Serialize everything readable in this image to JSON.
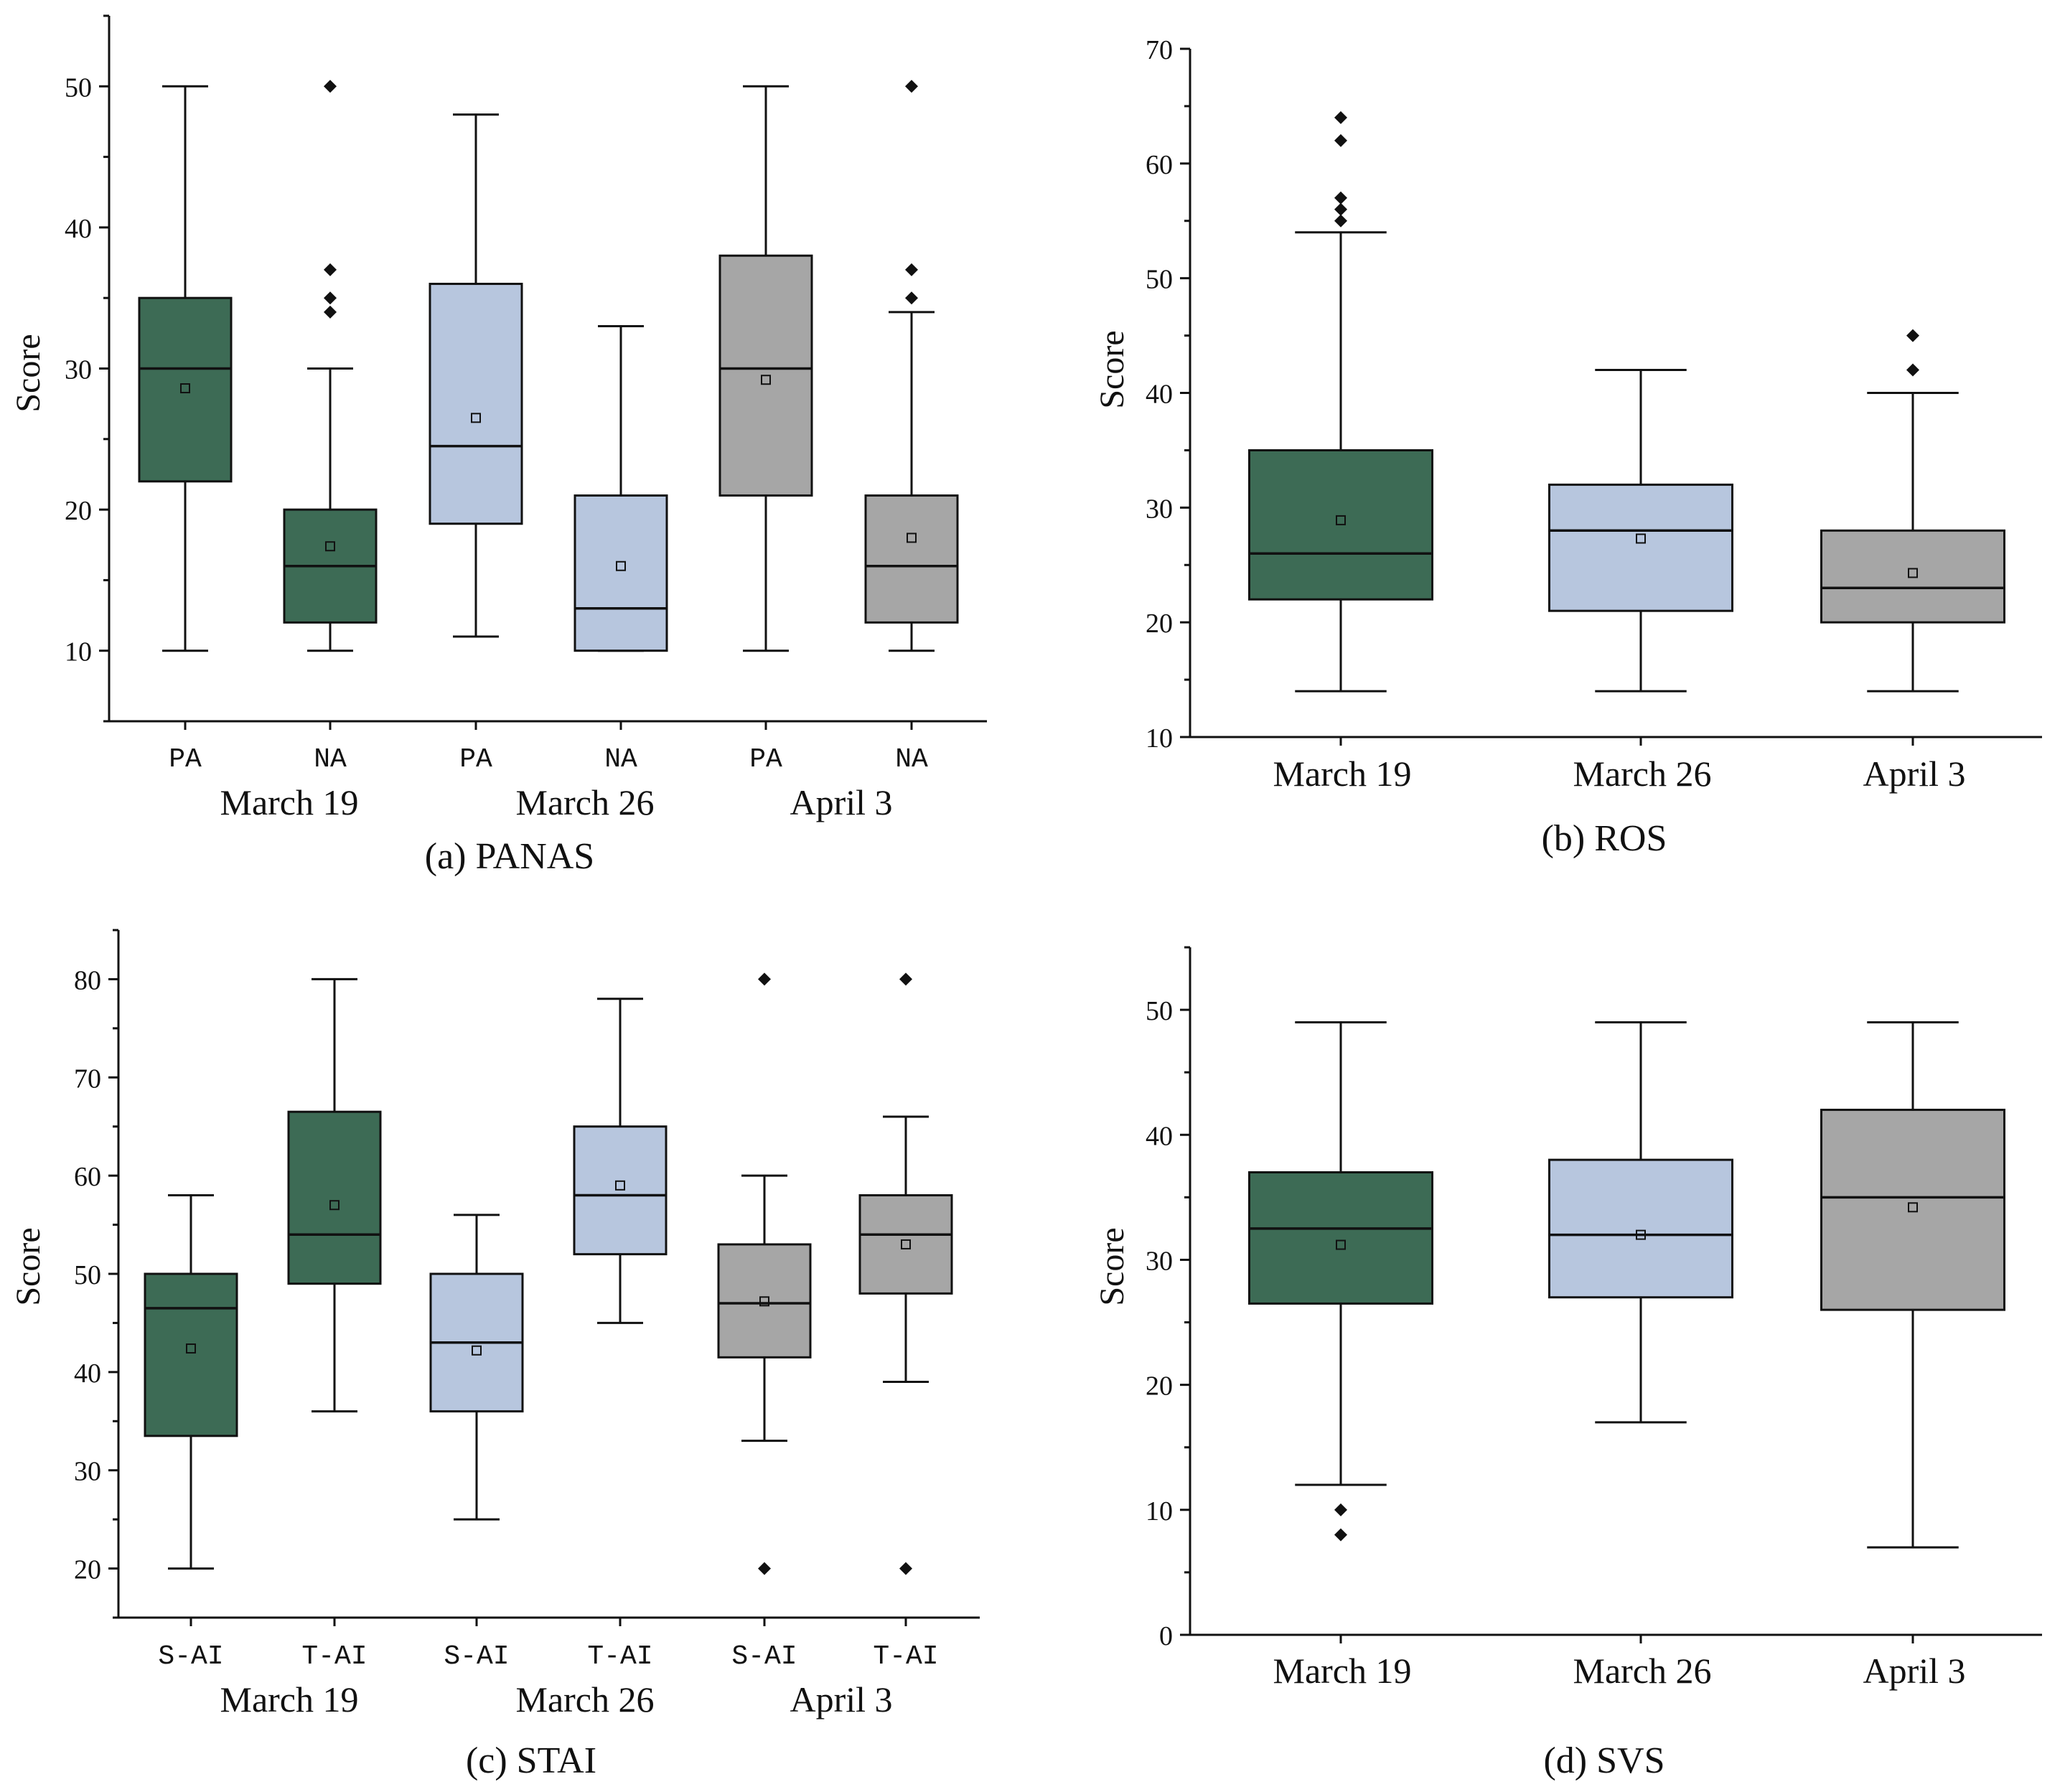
{
  "colors": {
    "march19": "#3d6b55",
    "march26": "#b7c6de",
    "april3": "#a6a6a6",
    "line": "#111111",
    "background": "#ffffff"
  },
  "chart_data": [
    {
      "id": "panas",
      "type": "box",
      "title": "(a) PANAS",
      "ylabel": "Score",
      "ylim": [
        5,
        55
      ],
      "yticks": [
        10,
        20,
        30,
        40,
        50
      ],
      "subcategories": [
        "PA",
        "NA",
        "PA",
        "NA",
        "PA",
        "NA"
      ],
      "groups": [
        "March 19",
        "March 26",
        "April 3"
      ],
      "boxes": [
        {
          "date": "March 19",
          "sub": "PA",
          "color": "march19",
          "whisker_low": 10,
          "q1": 22,
          "median": 30,
          "q3": 35,
          "whisker_high": 50,
          "mean": 28.6,
          "outliers": []
        },
        {
          "date": "March 19",
          "sub": "NA",
          "color": "march19",
          "whisker_low": 10,
          "q1": 12,
          "median": 16,
          "q3": 20,
          "whisker_high": 30,
          "mean": 17.4,
          "outliers": [
            34,
            35,
            37,
            50
          ]
        },
        {
          "date": "March 26",
          "sub": "PA",
          "color": "march26",
          "whisker_low": 11,
          "q1": 19,
          "median": 24.5,
          "q3": 36,
          "whisker_high": 48,
          "mean": 26.5,
          "outliers": []
        },
        {
          "date": "March 26",
          "sub": "NA",
          "color": "march26",
          "whisker_low": 10,
          "q1": 10,
          "median": 13,
          "q3": 21,
          "whisker_high": 33,
          "mean": 16,
          "outliers": []
        },
        {
          "date": "April 3",
          "sub": "PA",
          "color": "april3",
          "whisker_low": 10,
          "q1": 21,
          "median": 30,
          "q3": 38,
          "whisker_high": 50,
          "mean": 29.2,
          "outliers": []
        },
        {
          "date": "April 3",
          "sub": "NA",
          "color": "april3",
          "whisker_low": 10,
          "q1": 12,
          "median": 16,
          "q3": 21,
          "whisker_high": 34,
          "mean": 18,
          "outliers": [
            35,
            37,
            50
          ]
        }
      ]
    },
    {
      "id": "ros",
      "type": "box",
      "title": "(b) ROS",
      "ylabel": "Score",
      "ylim": [
        10,
        70
      ],
      "yticks": [
        10,
        20,
        30,
        40,
        50,
        60,
        70
      ],
      "subcategories": [],
      "groups": [
        "March 19",
        "March 26",
        "April 3"
      ],
      "boxes": [
        {
          "date": "March 19",
          "sub": "",
          "color": "march19",
          "whisker_low": 14,
          "q1": 22,
          "median": 26,
          "q3": 35,
          "whisker_high": 54,
          "mean": 28.9,
          "outliers": [
            55,
            56,
            57,
            62,
            64
          ]
        },
        {
          "date": "March 26",
          "sub": "",
          "color": "march26",
          "whisker_low": 14,
          "q1": 21,
          "median": 28,
          "q3": 32,
          "whisker_high": 42,
          "mean": 27.3,
          "outliers": []
        },
        {
          "date": "April 3",
          "sub": "",
          "color": "april3",
          "whisker_low": 14,
          "q1": 20,
          "median": 23,
          "q3": 28,
          "whisker_high": 40,
          "mean": 24.3,
          "outliers": [
            42,
            45
          ]
        }
      ]
    },
    {
      "id": "stai",
      "type": "box",
      "title": "(c) STAI",
      "ylabel": "Score",
      "ylim": [
        15,
        85
      ],
      "yticks": [
        20,
        30,
        40,
        50,
        60,
        70,
        80
      ],
      "subcategories": [
        "S-AI",
        "T-AI",
        "S-AI",
        "T-AI",
        "S-AI",
        "T-AI"
      ],
      "groups": [
        "March 19",
        "March 26",
        "April 3"
      ],
      "boxes": [
        {
          "date": "March 19",
          "sub": "S-AI",
          "color": "march19",
          "whisker_low": 20,
          "q1": 33.5,
          "median": 46.5,
          "q3": 50,
          "whisker_high": 58,
          "mean": 42.4,
          "outliers": []
        },
        {
          "date": "March 19",
          "sub": "T-AI",
          "color": "march19",
          "whisker_low": 36,
          "q1": 49,
          "median": 54,
          "q3": 66.5,
          "whisker_high": 80,
          "mean": 57,
          "outliers": []
        },
        {
          "date": "March 26",
          "sub": "S-AI",
          "color": "march26",
          "whisker_low": 25,
          "q1": 36,
          "median": 43,
          "q3": 50,
          "whisker_high": 56,
          "mean": 42.2,
          "outliers": []
        },
        {
          "date": "March 26",
          "sub": "T-AI",
          "color": "march26",
          "whisker_low": 45,
          "q1": 52,
          "median": 58,
          "q3": 65,
          "whisker_high": 78,
          "mean": 59,
          "outliers": []
        },
        {
          "date": "April 3",
          "sub": "S-AI",
          "color": "april3",
          "whisker_low": 33,
          "q1": 41.5,
          "median": 47,
          "q3": 53,
          "whisker_high": 60,
          "mean": 47.2,
          "outliers": [
            20,
            80
          ]
        },
        {
          "date": "April 3",
          "sub": "T-AI",
          "color": "april3",
          "whisker_low": 39,
          "q1": 48,
          "median": 54,
          "q3": 58,
          "whisker_high": 66,
          "mean": 53,
          "outliers": [
            20,
            80
          ]
        }
      ]
    },
    {
      "id": "svs",
      "type": "box",
      "title": "(d) SVS",
      "ylabel": "Score",
      "ylim": [
        0,
        55
      ],
      "yticks": [
        0,
        10,
        20,
        30,
        40,
        50
      ],
      "subcategories": [],
      "groups": [
        "March 19",
        "March 26",
        "April 3"
      ],
      "boxes": [
        {
          "date": "March 19",
          "sub": "",
          "color": "march19",
          "whisker_low": 12,
          "q1": 26.5,
          "median": 32.5,
          "q3": 37,
          "whisker_high": 49,
          "mean": 31.2,
          "outliers": [
            8,
            10
          ]
        },
        {
          "date": "March 26",
          "sub": "",
          "color": "march26",
          "whisker_low": 17,
          "q1": 27,
          "median": 32,
          "q3": 38,
          "whisker_high": 49,
          "mean": 32,
          "outliers": []
        },
        {
          "date": "April 3",
          "sub": "",
          "color": "april3",
          "whisker_low": 7,
          "q1": 26,
          "median": 35,
          "q3": 42,
          "whisker_high": 49,
          "mean": 34.2,
          "outliers": []
        }
      ]
    }
  ]
}
